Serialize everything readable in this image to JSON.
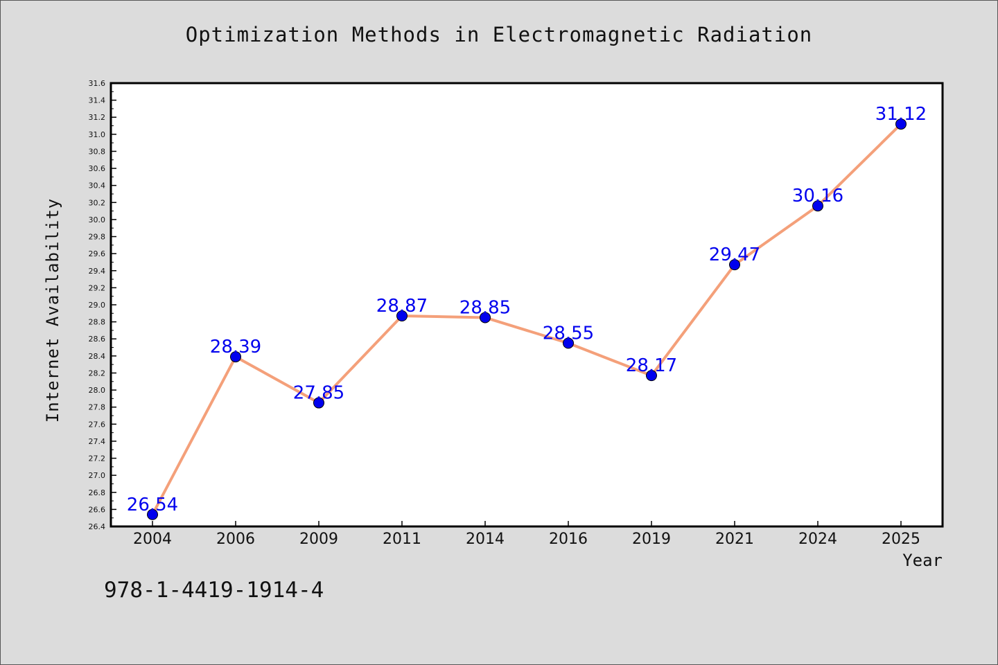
{
  "chart_data": {
    "type": "line",
    "title": "Optimization Methods in Electromagnetic Radiation",
    "xlabel": "Year",
    "ylabel": "Internet Availability",
    "categories": [
      "2004",
      "2006",
      "2009",
      "2011",
      "2014",
      "2016",
      "2019",
      "2021",
      "2024",
      "2025"
    ],
    "series": [
      {
        "values": [
          26.54,
          28.39,
          27.85,
          28.87,
          28.85,
          28.55,
          28.17,
          29.47,
          30.16,
          31.12
        ],
        "data_labels": [
          "26.54",
          "28.39",
          "27.85",
          "28.87",
          "28.85",
          "28.55",
          "28.17",
          "29.47",
          "30.16",
          "31.12"
        ],
        "line_color": "#f4a07a",
        "marker_color": "#0000ee"
      }
    ],
    "ylim": [
      26.4,
      31.6
    ],
    "yticks": [
      "26.4",
      "26.6",
      "26.8",
      "27.0",
      "27.2",
      "27.4",
      "27.6",
      "27.8",
      "28.0",
      "28.2",
      "28.4",
      "28.6",
      "28.8",
      "29.0",
      "29.2",
      "29.4",
      "29.6",
      "29.8",
      "30.0",
      "30.2",
      "30.4",
      "30.6",
      "30.8",
      "31.0",
      "31.2",
      "31.4",
      "31.6"
    ],
    "grid": false,
    "legend": "none",
    "label_color": "#0000ee"
  },
  "footnote": "978-1-4419-1914-4",
  "colors": {
    "background": "#dcdcdc",
    "plot_background": "#ffffff"
  }
}
